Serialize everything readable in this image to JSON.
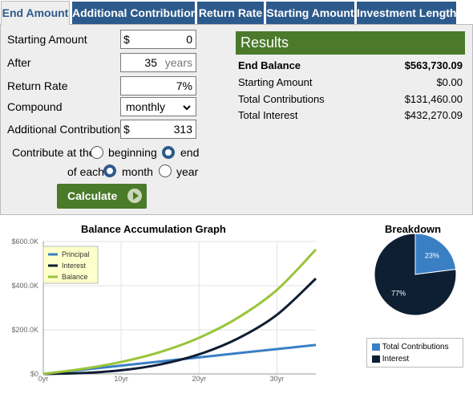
{
  "tabs": [
    {
      "label": "End Amount",
      "active": true
    },
    {
      "label": "Additional Contribution",
      "active": false
    },
    {
      "label": "Return Rate",
      "active": false
    },
    {
      "label": "Starting Amount",
      "active": false
    },
    {
      "label": "Investment Length",
      "active": false
    }
  ],
  "form": {
    "starting_amount": {
      "label": "Starting Amount",
      "prefix": "$",
      "value": "0"
    },
    "after": {
      "label": "After",
      "value": "35",
      "suffix": "years"
    },
    "return_rate": {
      "label": "Return Rate",
      "value": "7%"
    },
    "compound": {
      "label": "Compound",
      "value": "monthly"
    },
    "additional_contribution": {
      "label": "Additional Contribution",
      "prefix": "$",
      "value": "313"
    },
    "contribute_at": {
      "label": "Contribute at the",
      "options": [
        "beginning",
        "end"
      ],
      "selected": "end"
    },
    "of_each": {
      "label": "of each",
      "options": [
        "month",
        "year"
      ],
      "selected": "month"
    },
    "calculate_label": "Calculate"
  },
  "results": {
    "title": "Results",
    "rows": [
      {
        "label": "End Balance",
        "value": "$563,730.09",
        "bold": true
      },
      {
        "label": "Starting Amount",
        "value": "$0.00",
        "bold": false
      },
      {
        "label": "Total Contributions",
        "value": "$131,460.00",
        "bold": false
      },
      {
        "label": "Total Interest",
        "value": "$432,270.09",
        "bold": false
      }
    ]
  },
  "colors": {
    "tab_blue": "#2d5a8c",
    "green": "#4a7a2a",
    "principal": "#3a7fc4",
    "interest": "#0e1e33",
    "balance": "#9ac43a"
  },
  "chart_data": [
    {
      "type": "line",
      "title": "Balance Accumulation Graph",
      "x_tick_labels": [
        "0yr",
        "10yr",
        "20yr",
        "30yr"
      ],
      "x_ticks": [
        0,
        10,
        20,
        30
      ],
      "xlim": [
        0,
        35
      ],
      "y_tick_labels": [
        "$0",
        "$200.0K",
        "$400.0K",
        "$600.0K"
      ],
      "y_ticks": [
        0,
        200000,
        400000,
        600000
      ],
      "ylim": [
        0,
        600000
      ],
      "legend_position": "top-left",
      "x": [
        0,
        5,
        10,
        15,
        20,
        25,
        30,
        35
      ],
      "series": [
        {
          "name": "Principal",
          "color": "#3a7fc4",
          "values": [
            0,
            18780,
            37560,
            56340,
            75120,
            93900,
            112680,
            131460
          ]
        },
        {
          "name": "Interest",
          "color": "#0e1e33",
          "values": [
            0,
            3870,
            16650,
            42940,
            88720,
            160860,
            268000,
            432270
          ]
        },
        {
          "name": "Balance",
          "color": "#9ac43a",
          "values": [
            0,
            22650,
            54210,
            99280,
            163840,
            254760,
            380680,
            563730
          ]
        }
      ]
    },
    {
      "type": "pie",
      "title": "Breakdown",
      "legend_position": "bottom",
      "slices": [
        {
          "name": "Total Contributions",
          "value": 23,
          "label": "23%",
          "color": "#3a7fc4"
        },
        {
          "name": "Interest",
          "value": 77,
          "label": "77%",
          "color": "#0e1e33"
        }
      ]
    }
  ]
}
